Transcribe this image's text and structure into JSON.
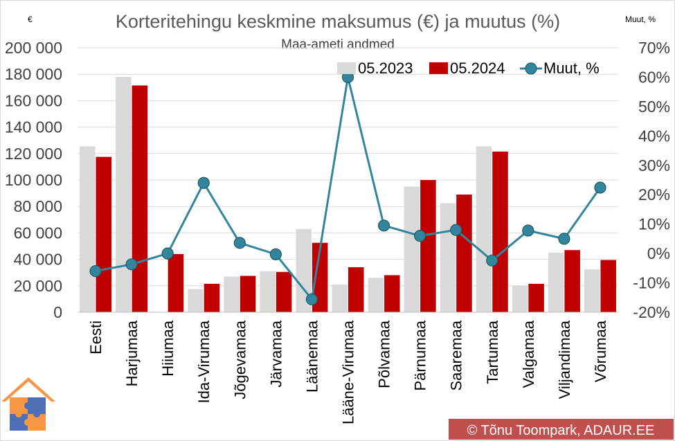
{
  "chart_data": {
    "type": "bar",
    "title": "Korteritehingu keskmine maksumus (€) ja muutus (%)",
    "subtitle": "Maa-ameti andmed",
    "y_left_unit": "€",
    "y_right_unit": "Muut, %",
    "categories": [
      "Eesti",
      "Harjumaa",
      "Hiiumaa",
      "Ida-Virumaa",
      "Jõgevamaa",
      "Järvamaa",
      "Läänemaa",
      "Lääne-Virumaa",
      "Põlvamaa",
      "Pärnumaa",
      "Saaremaa",
      "Tartumaa",
      "Valgamaa",
      "Viljandimaa",
      "Võrumaa"
    ],
    "series": [
      {
        "name": "05.2023",
        "type": "bar",
        "color": "#d9d9d9",
        "axis": "left",
        "values": [
          125500,
          178000,
          null,
          17500,
          27000,
          31000,
          63000,
          21000,
          26000,
          95000,
          82500,
          125500,
          20000,
          45000,
          32500
        ]
      },
      {
        "name": "05.2024",
        "type": "bar",
        "color": "#c00000",
        "axis": "left",
        "values": [
          117500,
          171500,
          44000,
          21500,
          27500,
          30500,
          52500,
          34000,
          28000,
          100000,
          89000,
          121500,
          21500,
          47000,
          39500
        ]
      },
      {
        "name": "Muut, %",
        "type": "line",
        "color": "#31859c",
        "axis": "right",
        "values": [
          -6.0,
          -3.7,
          0.0,
          24.0,
          3.6,
          -0.3,
          -15.6,
          60.0,
          9.5,
          6.0,
          8.0,
          -2.4,
          7.8,
          5.0,
          22.4
        ]
      }
    ],
    "ylim_left": [
      0,
      200000
    ],
    "yticks_left": [
      "200 000",
      "180 000",
      "160 000",
      "140 000",
      "120 000",
      "100 000",
      "80 000",
      "60 000",
      "40 000",
      "20 000",
      "0"
    ],
    "ylim_right": [
      -20,
      70
    ],
    "yticks_right": [
      "70%",
      "60%",
      "50%",
      "40%",
      "30%",
      "20%",
      "10%",
      "0%",
      "-10%",
      "-20%"
    ],
    "grid": "horizontal",
    "legend": "top-right"
  },
  "credit": "© Tõnu Toompark, ADAUR.EE",
  "logo": "puzzle-house-logo"
}
